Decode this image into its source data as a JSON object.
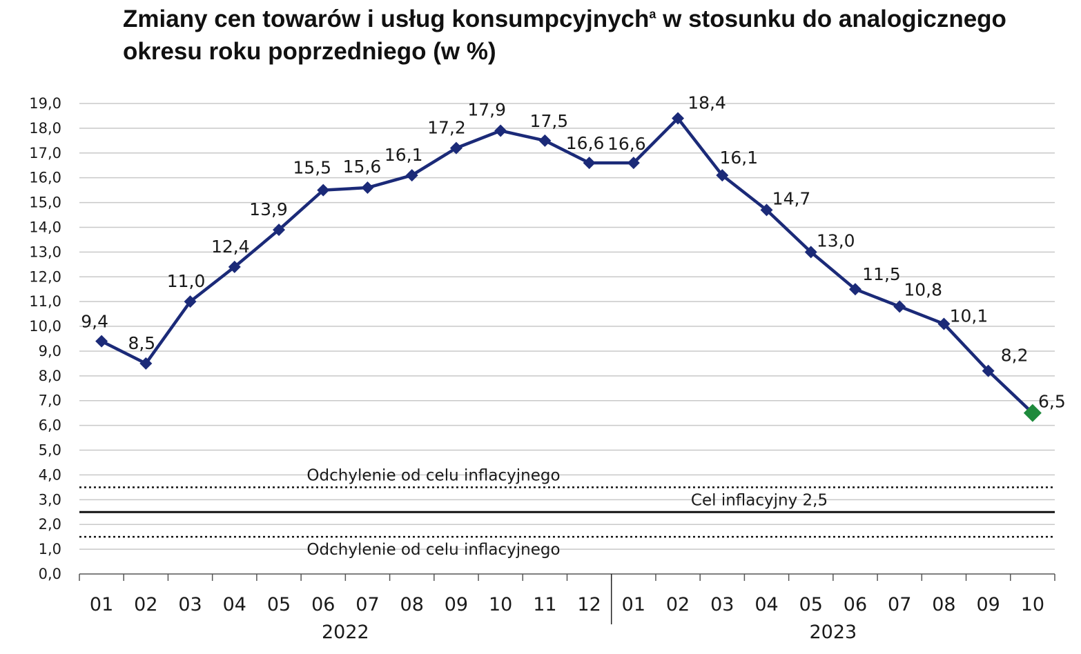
{
  "title": {
    "text_main": "Zmiany cen towarów i usług konsumpcyjnych",
    "footnote_mark": "a",
    "text_rest": " w stosunku do analogicznego okresu roku poprzedniego (w %)"
  },
  "chart_data": {
    "type": "line",
    "categories": [
      "01",
      "02",
      "03",
      "04",
      "05",
      "06",
      "07",
      "08",
      "09",
      "10",
      "11",
      "12",
      "01",
      "02",
      "03",
      "04",
      "05",
      "06",
      "07",
      "08",
      "09",
      "10"
    ],
    "year_groups": [
      {
        "label": "2022",
        "count": 12
      },
      {
        "label": "2023",
        "count": 10
      }
    ],
    "series": [
      {
        "values": [
          9.4,
          8.5,
          11.0,
          12.4,
          13.9,
          15.5,
          15.6,
          16.1,
          17.2,
          17.9,
          17.5,
          16.6,
          16.6,
          18.4,
          16.1,
          14.7,
          13.0,
          11.5,
          10.8,
          10.1,
          8.2,
          6.5
        ],
        "labels": [
          "9,4",
          "8,5",
          "11,0",
          "12,4",
          "13,9",
          "15,5",
          "15,6",
          "16,1",
          "17,2",
          "17,9",
          "17,5",
          "16,6",
          "16,6",
          "18,4",
          "16,1",
          "14,7",
          "13,0",
          "11,5",
          "10,8",
          "10,1",
          "8,2",
          "6,5"
        ],
        "color": "#1b2a78",
        "last_point_color": "#1e8a3c"
      }
    ],
    "ylim": [
      0,
      19
    ],
    "ytick_labels": [
      "0,0",
      "1,0",
      "2,0",
      "3,0",
      "4,0",
      "5,0",
      "6,0",
      "7,0",
      "8,0",
      "9,0",
      "10,0",
      "11,0",
      "12,0",
      "13,0",
      "14,0",
      "15,0",
      "16,0",
      "17,0",
      "18,0",
      "19,0"
    ],
    "grid": true,
    "reference_lines": [
      {
        "value": 3.5,
        "style": "dotted",
        "label": "Odchylenie od celu inflacyjnego",
        "label_position": "above"
      },
      {
        "value": 2.5,
        "style": "solid",
        "label": "Cel inflacyjny 2,5",
        "label_position": "above"
      },
      {
        "value": 1.5,
        "style": "dotted",
        "label": "Odchylenie od celu inflacyjnego",
        "label_position": "below"
      }
    ],
    "colors": {
      "grid": "#c8c8c8",
      "axis": "#555555",
      "reference": "#111111"
    }
  }
}
